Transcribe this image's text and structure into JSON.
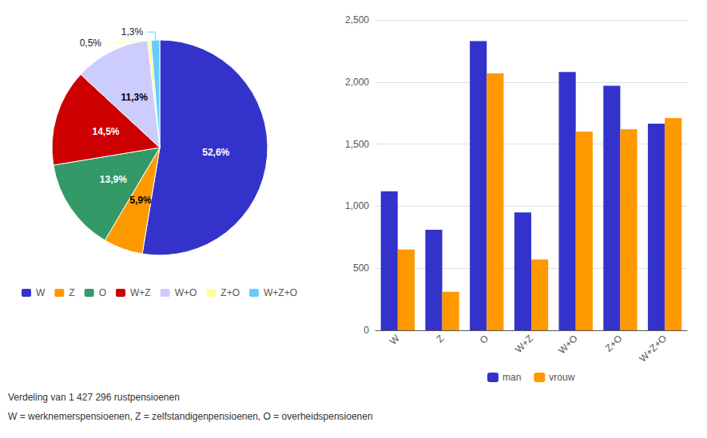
{
  "chart_data": [
    {
      "type": "pie",
      "categories": [
        "W",
        "Z",
        "O",
        "W+Z",
        "W+O",
        "Z+O",
        "W+Z+O"
      ],
      "values": [
        52.6,
        5.9,
        13.9,
        14.5,
        11.3,
        0.5,
        1.3
      ],
      "value_labels": [
        "52,6%",
        "5,9%",
        "13,9%",
        "14,5%",
        "11,3%",
        "0,5%",
        "1,3%"
      ],
      "colors": [
        "#3333cc",
        "#ff9900",
        "#339966",
        "#cc0000",
        "#ccccff",
        "#ffff99",
        "#66ccff"
      ],
      "data_labels": true,
      "legend": "bottom",
      "annotations": [
        "Verdeling van 1 427 296 rustpensioenen",
        "W = werknemerspensioenen, Z = zelfstandigenpensioenen, O = overheidspensioenen"
      ]
    },
    {
      "type": "bar",
      "categories": [
        "W",
        "Z",
        "O",
        "W+Z",
        "W+O",
        "Z+O",
        "W+Z+O"
      ],
      "series": [
        {
          "name": "man",
          "color": "#3333cc",
          "values": [
            1120,
            810,
            2330,
            950,
            2080,
            1970,
            1665
          ]
        },
        {
          "name": "vrouw",
          "color": "#ff9900",
          "values": [
            650,
            310,
            2070,
            570,
            1600,
            1620,
            1710
          ]
        }
      ],
      "ylim": [
        0,
        2500
      ],
      "yticks": [
        0,
        500,
        1000,
        1500,
        2000,
        2500
      ],
      "grid": true,
      "legend": "bottom"
    }
  ]
}
